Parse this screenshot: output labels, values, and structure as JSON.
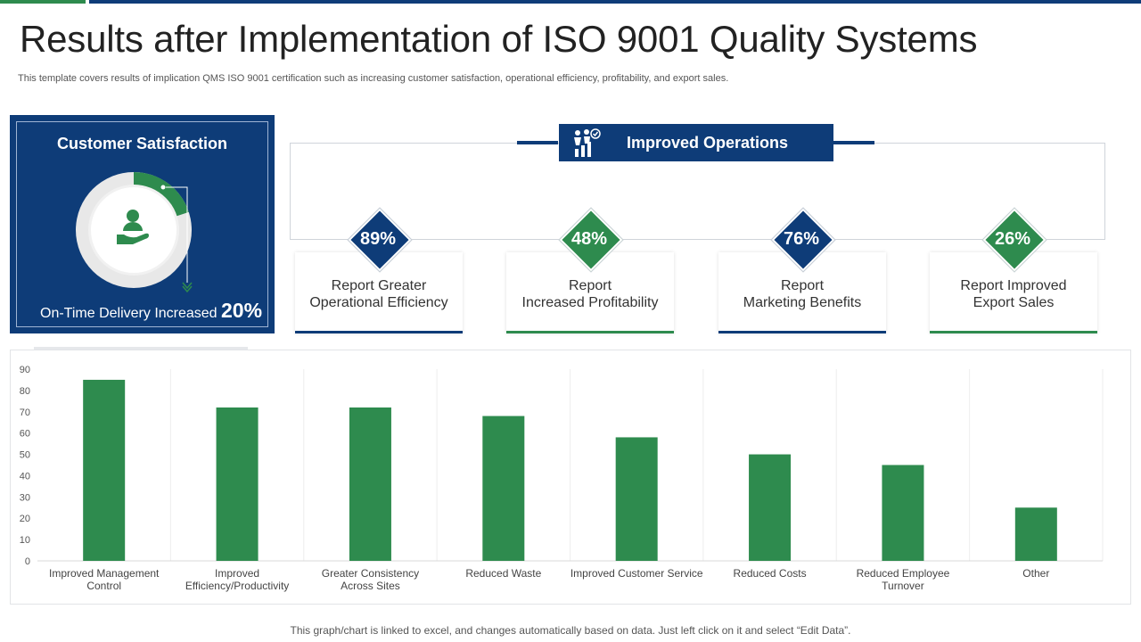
{
  "header": {
    "title": "Results after Implementation of ISO 9001 Quality Systems",
    "subtitle": "This template covers results of implication QMS ISO 9001 certification such as increasing customer satisfaction, operational efficiency, profitability, and export sales."
  },
  "customer_satisfaction": {
    "title": "Customer Satisfaction",
    "metric_label": "On-Time Delivery Increased",
    "metric_value": "20%",
    "fraction": 0.2,
    "icon": "person-hand-icon",
    "colors": {
      "panel": "#0e3c78",
      "donut_fill": "#2e8b4e",
      "donut_track": "#e8e8e8"
    }
  },
  "improved_operations": {
    "title": "Improved Operations",
    "icon": "people-chart-icon",
    "cards": [
      {
        "value": "89%",
        "label": "Report Greater\nOperational Efficiency",
        "color": "#0e3c78"
      },
      {
        "value": "48%",
        "label": "Report\nIncreased Profitability",
        "color": "#2e8b4e"
      },
      {
        "value": "76%",
        "label": "Report\nMarketing Benefits",
        "color": "#0e3c78"
      },
      {
        "value": "26%",
        "label": "Report Improved\nExport Sales",
        "color": "#2e8b4e"
      }
    ]
  },
  "chart_data": {
    "type": "bar",
    "title": "",
    "xlabel": "",
    "ylabel": "",
    "ylim": [
      0,
      90
    ],
    "yticks": [
      0,
      10,
      20,
      30,
      40,
      50,
      60,
      70,
      80,
      90
    ],
    "categories": [
      "Improved Management\nControl",
      "Improved\nEfficiency/Productivity",
      "Greater Consistency\nAcross Sites",
      "Reduced Waste",
      "Improved Customer Service",
      "Reduced Costs",
      "Reduced Employee\nTurnover",
      "Other"
    ],
    "values": [
      85,
      72,
      72,
      68,
      58,
      50,
      45,
      25
    ],
    "bar_color": "#2e8b4e",
    "grid": "vertical"
  },
  "footer": {
    "note": "This graph/chart is linked to excel, and changes automatically based on data. Just left click on it and select “Edit Data”."
  }
}
